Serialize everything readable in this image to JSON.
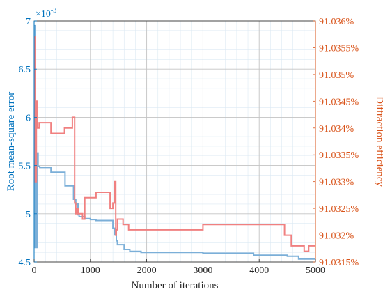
{
  "chart_data": {
    "type": "line",
    "xlabel": "Number of iterations",
    "ylabel_left": "Root mean-square error",
    "ylabel_right": "Diffraction efficiency",
    "left_exponent_label": "×10",
    "left_exponent_power": "-3",
    "xlim": [
      0,
      5000
    ],
    "ylim_left": [
      4.5,
      7.0
    ],
    "ylim_right": [
      91.0315,
      91.036
    ],
    "x_ticks": [
      "0",
      "1000",
      "2000",
      "3000",
      "4000",
      "5000"
    ],
    "x_tick_values": [
      0,
      1000,
      2000,
      3000,
      4000,
      5000
    ],
    "left_ticks": [
      "4.5",
      "5",
      "5.5",
      "6",
      "6.5",
      "7"
    ],
    "left_tick_values": [
      4.5,
      5.0,
      5.5,
      6.0,
      6.5,
      7.0
    ],
    "right_ticks": [
      "91.0315%",
      "91.032%",
      "91.0325%",
      "91.033%",
      "91.0335%",
      "91.034%",
      "91.0345%",
      "91.035%",
      "91.0355%",
      "91.036%"
    ],
    "right_tick_values": [
      91.0315,
      91.032,
      91.0325,
      91.033,
      91.0335,
      91.034,
      91.0345,
      91.035,
      91.0355,
      91.036
    ],
    "grid": true,
    "series": [
      {
        "axis": "left",
        "color": "#7bafd8",
        "x": [
          0,
          20,
          20,
          50,
          50,
          70,
          70,
          100,
          100,
          300,
          300,
          550,
          550,
          700,
          700,
          740,
          740,
          780,
          780,
          800,
          800,
          900,
          900,
          1000,
          1000,
          1100,
          1100,
          1400,
          1400,
          1430,
          1430,
          1460,
          1460,
          1480,
          1480,
          1600,
          1600,
          1700,
          1700,
          1900,
          1900,
          3000,
          3000,
          3900,
          3900,
          4500,
          4500,
          4700,
          4700,
          5000
        ],
        "y": [
          6.95,
          6.95,
          4.65,
          4.65,
          5.63,
          5.63,
          5.49,
          5.49,
          5.48,
          5.48,
          5.43,
          5.43,
          5.29,
          5.29,
          5.15,
          5.15,
          5.1,
          5.1,
          4.99,
          4.99,
          4.97,
          4.97,
          4.95,
          4.95,
          4.94,
          4.94,
          4.93,
          4.93,
          4.85,
          4.85,
          4.78,
          4.78,
          4.72,
          4.72,
          4.68,
          4.68,
          4.63,
          4.63,
          4.61,
          4.61,
          4.6,
          4.6,
          4.59,
          4.59,
          4.57,
          4.57,
          4.56,
          4.56,
          4.53,
          4.53
        ]
      },
      {
        "axis": "right",
        "color": "#f08080",
        "x": [
          0,
          20,
          20,
          40,
          40,
          60,
          60,
          90,
          90,
          300,
          300,
          540,
          540,
          680,
          680,
          720,
          720,
          740,
          740,
          760,
          760,
          780,
          780,
          860,
          860,
          900,
          900,
          1100,
          1100,
          1350,
          1350,
          1400,
          1400,
          1430,
          1430,
          1450,
          1450,
          1460,
          1460,
          1480,
          1480,
          1580,
          1580,
          1680,
          1680,
          1900,
          1900,
          2200,
          2200,
          3000,
          3000,
          3900,
          3900,
          4000,
          4000,
          4450,
          4450,
          4570,
          4570,
          4800,
          4800,
          4880,
          4880,
          5000
        ],
        "y": [
          91.0357,
          91.0357,
          91.033,
          91.033,
          91.0345,
          91.0345,
          91.034,
          91.034,
          91.0341,
          91.0341,
          91.0339,
          91.0339,
          91.034,
          91.034,
          91.0342,
          91.0342,
          91.0326,
          91.0326,
          91.0324,
          91.0324,
          91.0325,
          91.0325,
          91.0324,
          91.0324,
          91.0323,
          91.0323,
          91.0327,
          91.0327,
          91.0328,
          91.0328,
          91.0325,
          91.0325,
          91.0326,
          91.0326,
          91.033,
          91.033,
          91.032,
          91.032,
          91.0321,
          91.0321,
          91.0323,
          91.0323,
          91.0322,
          91.0322,
          91.0321,
          91.0321,
          91.0321,
          91.0321,
          91.0321,
          91.0321,
          91.0322,
          91.0322,
          91.0322,
          91.0322,
          91.0322,
          91.0322,
          91.032,
          91.032,
          91.0318,
          91.0318,
          91.0317,
          91.0317,
          91.0318,
          91.0318
        ]
      }
    ]
  }
}
